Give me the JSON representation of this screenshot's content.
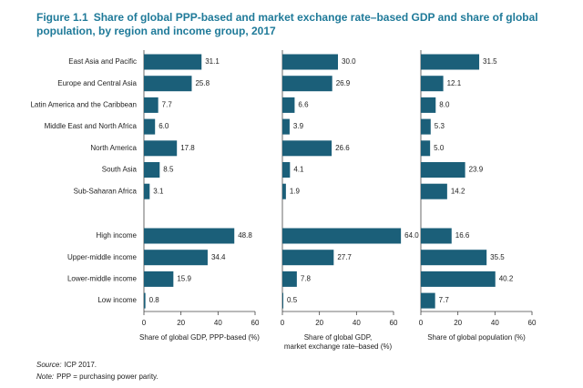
{
  "header": {
    "label": "Figure 1.1",
    "title": "Share of global PPP-based and market exchange rate–based GDP and share of global population, by region and income group, 2017"
  },
  "chart_data": [
    {
      "type": "bar",
      "orientation": "horizontal",
      "color": "#1b5f79",
      "categories": [
        "East Asia and Pacific",
        "Europe and Central Asia",
        "Latin America and the Caribbean",
        "Middle East and North Africa",
        "North America",
        "South Asia",
        "Sub-Saharan Africa",
        "High income",
        "Upper-middle income",
        "Lower-middle income",
        "Low income"
      ],
      "values": [
        31.1,
        25.8,
        7.7,
        6.0,
        17.8,
        8.5,
        3.1,
        48.8,
        34.4,
        15.9,
        0.8
      ],
      "value_labels": [
        "31.1",
        "25.8",
        "7.7",
        "6.0",
        "17.8",
        "8.5",
        "3.1",
        "48.8",
        "34.4",
        "15.9",
        "0.8"
      ],
      "xlim": [
        0,
        60
      ],
      "xticks": [
        0,
        20,
        40,
        60
      ],
      "xlabel": [
        "Share of global GDP, PPP-based (%)"
      ]
    },
    {
      "type": "bar",
      "orientation": "horizontal",
      "color": "#1b5f79",
      "values": [
        30.0,
        26.9,
        6.6,
        3.9,
        26.6,
        4.1,
        1.9,
        64.0,
        27.7,
        7.8,
        0.5
      ],
      "value_labels": [
        "30.0",
        "26.9",
        "6.6",
        "3.9",
        "26.6",
        "4.1",
        "1.9",
        "64.0",
        "27.7",
        "7.8",
        "0.5"
      ],
      "xlim": [
        0,
        60
      ],
      "xticks": [
        0,
        20,
        40,
        60
      ],
      "xlabel": [
        "Share of global GDP,",
        "market exchange rate–based (%)"
      ]
    },
    {
      "type": "bar",
      "orientation": "horizontal",
      "color": "#1b5f79",
      "values": [
        31.5,
        12.1,
        8.0,
        5.3,
        5.0,
        23.9,
        14.2,
        16.6,
        35.5,
        40.2,
        7.7
      ],
      "value_labels": [
        "31.5",
        "12.1",
        "8.0",
        "5.3",
        "5.0",
        "23.9",
        "14.2",
        "16.6",
        "35.5",
        "40.2",
        "7.7"
      ],
      "xlim": [
        0,
        60
      ],
      "xticks": [
        0,
        20,
        40,
        60
      ],
      "xlabel": [
        "Share of global population (%)"
      ]
    }
  ],
  "source": {
    "label": "Source:",
    "text": "ICP 2017."
  },
  "note": {
    "label": "Note:",
    "text": "PPP = purchasing power parity."
  }
}
